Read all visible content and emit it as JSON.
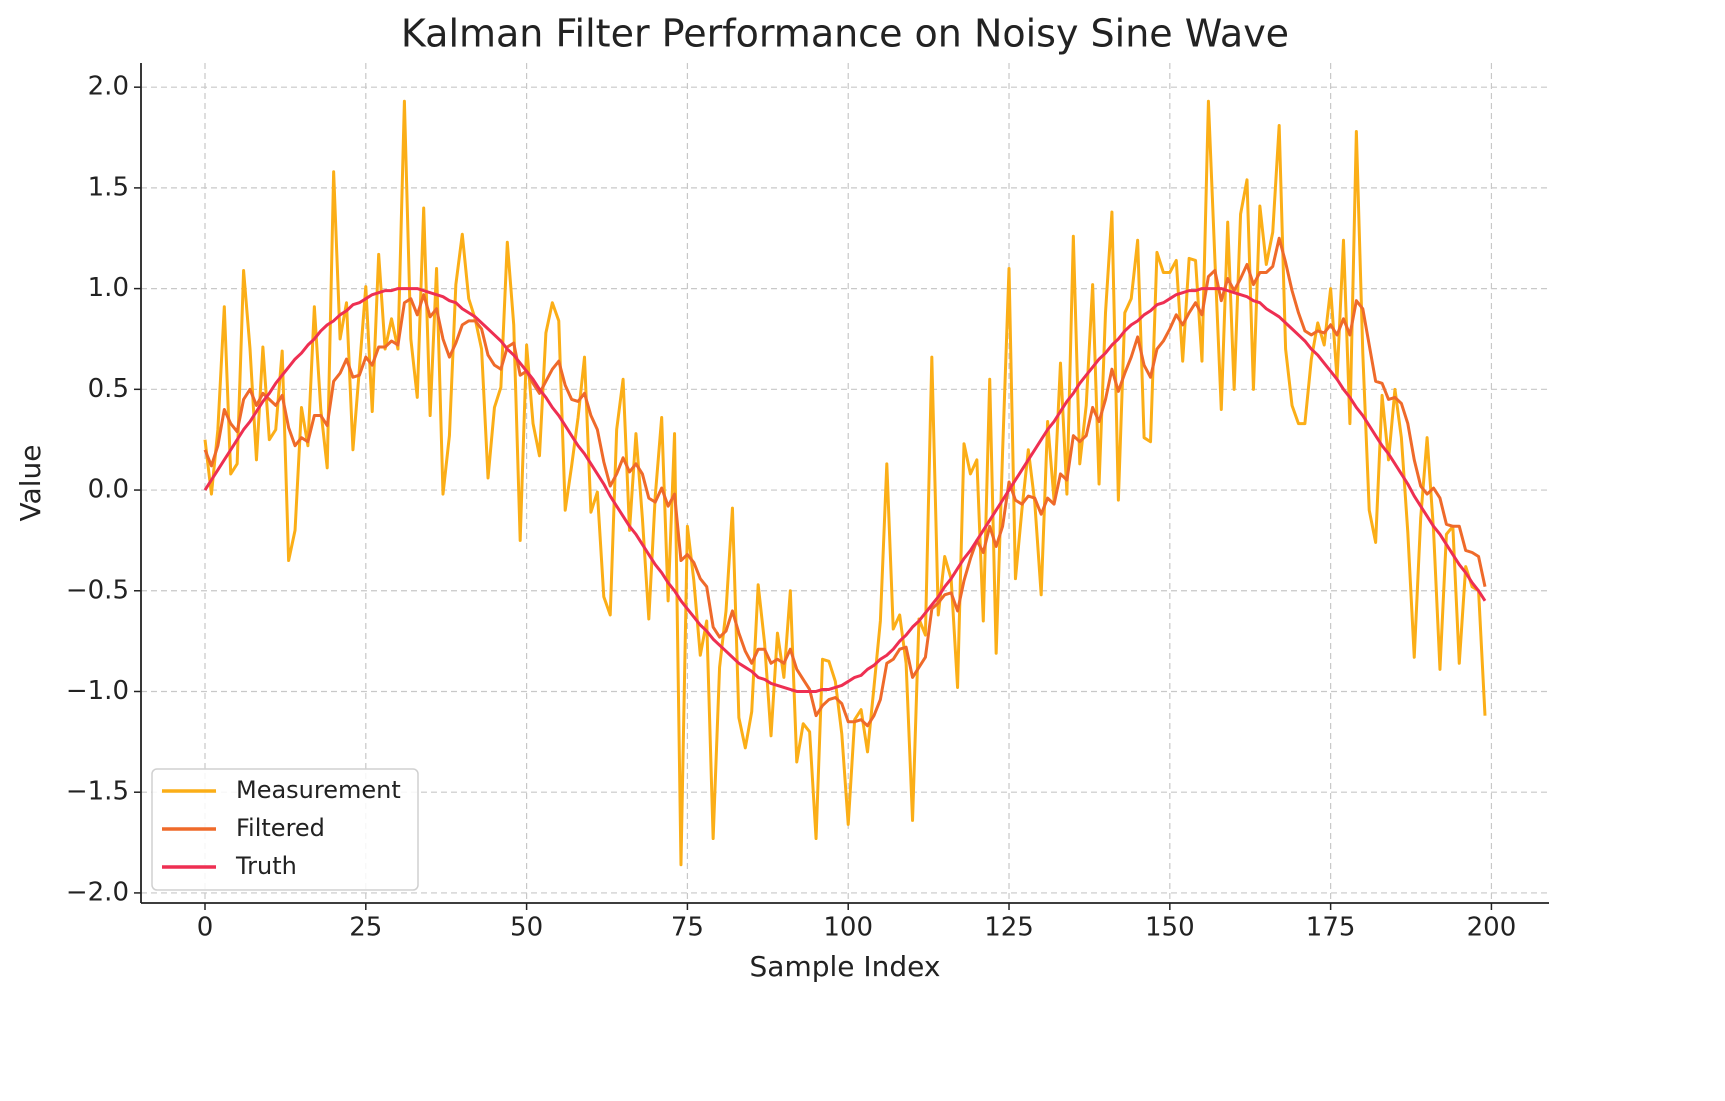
{
  "chart_data": {
    "type": "line",
    "title": "Kalman Filter Performance on Noisy Sine Wave",
    "xlabel": "Sample Index",
    "ylabel": "Value",
    "x": [
      0,
      1,
      2,
      3,
      4,
      5,
      6,
      7,
      8,
      9,
      10,
      11,
      12,
      13,
      14,
      15,
      16,
      17,
      18,
      19,
      20,
      21,
      22,
      23,
      24,
      25,
      26,
      27,
      28,
      29,
      30,
      31,
      32,
      33,
      34,
      35,
      36,
      37,
      38,
      39,
      40,
      41,
      42,
      43,
      44,
      45,
      46,
      47,
      48,
      49,
      50,
      51,
      52,
      53,
      54,
      55,
      56,
      57,
      58,
      59,
      60,
      61,
      62,
      63,
      64,
      65,
      66,
      67,
      68,
      69,
      70,
      71,
      72,
      73,
      74,
      75,
      76,
      77,
      78,
      79,
      80,
      81,
      82,
      83,
      84,
      85,
      86,
      87,
      88,
      89,
      90,
      91,
      92,
      93,
      94,
      95,
      96,
      97,
      98,
      99,
      100,
      101,
      102,
      103,
      104,
      105,
      106,
      107,
      108,
      109,
      110,
      111,
      112,
      113,
      114,
      115,
      116,
      117,
      118,
      119,
      120,
      121,
      122,
      123,
      124,
      125,
      126,
      127,
      128,
      129,
      130,
      131,
      132,
      133,
      134,
      135,
      136,
      137,
      138,
      139,
      140,
      141,
      142,
      143,
      144,
      145,
      146,
      147,
      148,
      149,
      150,
      151,
      152,
      153,
      154,
      155,
      156,
      157,
      158,
      159,
      160,
      161,
      162,
      163,
      164,
      165,
      166,
      167,
      168,
      169,
      170,
      171,
      172,
      173,
      174,
      175,
      176,
      177,
      178,
      179,
      180,
      181,
      182,
      183,
      184,
      185,
      186,
      187,
      188,
      189,
      190,
      191,
      192,
      193,
      194,
      195,
      196,
      197,
      198,
      199
    ],
    "series": [
      {
        "name": "Measurement",
        "color": "#fbae17",
        "values": [
          0.25,
          -0.02,
          0.3,
          0.91,
          0.08,
          0.13,
          1.09,
          0.7,
          0.15,
          0.71,
          0.25,
          0.3,
          0.69,
          -0.35,
          -0.2,
          0.41,
          0.22,
          0.91,
          0.4,
          0.11,
          1.58,
          0.75,
          0.93,
          0.2,
          0.6,
          1.01,
          0.39,
          1.17,
          0.7,
          0.85,
          0.7,
          1.93,
          0.75,
          0.46,
          1.4,
          0.37,
          1.1,
          -0.02,
          0.27,
          1.02,
          1.27,
          0.95,
          0.85,
          0.7,
          0.06,
          0.41,
          0.51,
          1.23,
          0.82,
          -0.25,
          0.72,
          0.33,
          0.17,
          0.78,
          0.93,
          0.84,
          -0.1,
          0.12,
          0.36,
          0.66,
          -0.11,
          -0.01,
          -0.53,
          -0.62,
          0.3,
          0.55,
          -0.2,
          0.28,
          -0.14,
          -0.64,
          -0.03,
          0.36,
          -0.55,
          0.28,
          -1.86,
          -0.18,
          -0.45,
          -0.82,
          -0.65,
          -1.73,
          -0.88,
          -0.6,
          -0.09,
          -1.13,
          -1.28,
          -1.1,
          -0.47,
          -0.76,
          -1.22,
          -0.71,
          -0.93,
          -0.5,
          -1.35,
          -1.16,
          -1.2,
          -1.73,
          -0.84,
          -0.85,
          -0.95,
          -1.21,
          -1.66,
          -1.14,
          -1.09,
          -1.3,
          -0.98,
          -0.65,
          0.13,
          -0.69,
          -0.62,
          -0.86,
          -1.64,
          -0.64,
          -0.72,
          0.66,
          -0.62,
          -0.33,
          -0.44,
          -0.98,
          0.23,
          0.08,
          0.15,
          -0.65,
          0.55,
          -0.81,
          0.19,
          1.1,
          -0.44,
          -0.1,
          0.2,
          -0.06,
          -0.52,
          0.34,
          -0.05,
          0.63,
          -0.02,
          1.26,
          0.13,
          0.42,
          1.02,
          0.03,
          0.88,
          1.38,
          -0.05,
          0.88,
          0.95,
          1.24,
          0.26,
          0.24,
          1.18,
          1.08,
          1.08,
          1.14,
          0.64,
          1.15,
          1.14,
          0.64,
          1.93,
          1.15,
          0.4,
          1.33,
          0.5,
          1.37,
          1.54,
          0.5,
          1.41,
          1.12,
          1.28,
          1.81,
          0.7,
          0.42,
          0.33,
          0.33,
          0.65,
          0.83,
          0.72,
          1.0,
          0.55,
          1.24,
          0.33,
          1.78,
          0.68,
          -0.1,
          -0.26,
          0.47,
          0.15,
          0.5,
          0.26,
          -0.21,
          -0.83,
          -0.14,
          0.26,
          -0.2,
          -0.89,
          -0.22,
          -0.18,
          -0.86,
          -0.38,
          -0.48,
          -0.5,
          -1.12
        ]
      },
      {
        "name": "Filtered",
        "color": "#ef6a2a",
        "values": [
          0.2,
          0.12,
          0.22,
          0.4,
          0.33,
          0.29,
          0.45,
          0.5,
          0.42,
          0.48,
          0.45,
          0.42,
          0.47,
          0.31,
          0.22,
          0.26,
          0.24,
          0.37,
          0.37,
          0.32,
          0.54,
          0.58,
          0.65,
          0.56,
          0.57,
          0.66,
          0.62,
          0.71,
          0.71,
          0.74,
          0.72,
          0.93,
          0.95,
          0.87,
          0.97,
          0.86,
          0.9,
          0.75,
          0.66,
          0.73,
          0.82,
          0.84,
          0.84,
          0.8,
          0.67,
          0.62,
          0.6,
          0.71,
          0.73,
          0.57,
          0.59,
          0.53,
          0.48,
          0.54,
          0.6,
          0.64,
          0.52,
          0.45,
          0.44,
          0.48,
          0.37,
          0.3,
          0.14,
          0.02,
          0.08,
          0.16,
          0.09,
          0.13,
          0.08,
          -0.04,
          -0.06,
          0.01,
          -0.08,
          -0.02,
          -0.35,
          -0.32,
          -0.36,
          -0.44,
          -0.48,
          -0.68,
          -0.73,
          -0.7,
          -0.6,
          -0.71,
          -0.8,
          -0.86,
          -0.79,
          -0.79,
          -0.86,
          -0.84,
          -0.86,
          -0.79,
          -0.89,
          -0.94,
          -0.99,
          -1.12,
          -1.07,
          -1.04,
          -1.03,
          -1.06,
          -1.15,
          -1.15,
          -1.14,
          -1.17,
          -1.12,
          -1.04,
          -0.86,
          -0.84,
          -0.79,
          -0.78,
          -0.93,
          -0.88,
          -0.83,
          -0.59,
          -0.56,
          -0.52,
          -0.51,
          -0.6,
          -0.45,
          -0.34,
          -0.25,
          -0.31,
          -0.18,
          -0.28,
          -0.18,
          0.04,
          -0.05,
          -0.07,
          -0.03,
          -0.04,
          -0.12,
          -0.04,
          -0.07,
          0.08,
          0.05,
          0.27,
          0.24,
          0.27,
          0.41,
          0.34,
          0.45,
          0.6,
          0.49,
          0.58,
          0.66,
          0.76,
          0.62,
          0.56,
          0.7,
          0.74,
          0.8,
          0.87,
          0.82,
          0.88,
          0.93,
          0.87,
          1.06,
          1.09,
          0.94,
          1.05,
          0.99,
          1.05,
          1.12,
          1.02,
          1.08,
          1.08,
          1.11,
          1.25,
          1.13,
          0.99,
          0.88,
          0.79,
          0.77,
          0.79,
          0.78,
          0.82,
          0.77,
          0.85,
          0.77,
          0.94,
          0.9,
          0.72,
          0.54,
          0.53,
          0.45,
          0.46,
          0.43,
          0.33,
          0.15,
          0.02,
          -0.02,
          0.01,
          -0.04,
          -0.17,
          -0.18,
          -0.18,
          -0.3,
          -0.31,
          -0.33,
          -0.48
        ]
      },
      {
        "name": "Truth",
        "color": "#ee2f52",
        "values": [
          0,
          0.05,
          0.1,
          0.15,
          0.2,
          0.25,
          0.3,
          0.34,
          0.39,
          0.44,
          0.48,
          0.53,
          0.57,
          0.61,
          0.65,
          0.68,
          0.72,
          0.75,
          0.79,
          0.82,
          0.84,
          0.87,
          0.89,
          0.92,
          0.93,
          0.95,
          0.97,
          0.98,
          0.99,
          0.99,
          1.0,
          1.0,
          1.0,
          1.0,
          0.99,
          0.98,
          0.97,
          0.96,
          0.94,
          0.93,
          0.9,
          0.88,
          0.86,
          0.83,
          0.8,
          0.77,
          0.74,
          0.7,
          0.67,
          0.63,
          0.59,
          0.55,
          0.5,
          0.46,
          0.41,
          0.37,
          0.32,
          0.27,
          0.22,
          0.18,
          0.13,
          0.08,
          0.03,
          -0.03,
          -0.08,
          -0.13,
          -0.18,
          -0.22,
          -0.27,
          -0.32,
          -0.37,
          -0.41,
          -0.46,
          -0.5,
          -0.55,
          -0.59,
          -0.63,
          -0.67,
          -0.7,
          -0.74,
          -0.77,
          -0.8,
          -0.83,
          -0.86,
          -0.88,
          -0.9,
          -0.93,
          -0.94,
          -0.96,
          -0.97,
          -0.98,
          -0.99,
          -1.0,
          -1.0,
          -1.0,
          -1.0,
          -0.99,
          -0.99,
          -0.98,
          -0.97,
          -0.95,
          -0.93,
          -0.92,
          -0.89,
          -0.87,
          -0.84,
          -0.82,
          -0.79,
          -0.75,
          -0.72,
          -0.68,
          -0.65,
          -0.61,
          -0.57,
          -0.53,
          -0.48,
          -0.44,
          -0.39,
          -0.34,
          -0.3,
          -0.25,
          -0.2,
          -0.15,
          -0.1,
          -0.05,
          0,
          0.05,
          0.1,
          0.15,
          0.2,
          0.25,
          0.3,
          0.34,
          0.39,
          0.44,
          0.48,
          0.53,
          0.57,
          0.61,
          0.65,
          0.68,
          0.72,
          0.75,
          0.79,
          0.82,
          0.84,
          0.87,
          0.89,
          0.92,
          0.93,
          0.95,
          0.97,
          0.98,
          0.99,
          0.99,
          1.0,
          1.0,
          1.0,
          1.0,
          0.99,
          0.98,
          0.97,
          0.96,
          0.94,
          0.93,
          0.9,
          0.88,
          0.86,
          0.83,
          0.8,
          0.77,
          0.74,
          0.7,
          0.67,
          0.63,
          0.59,
          0.55,
          0.5,
          0.46,
          0.41,
          0.37,
          0.32,
          0.27,
          0.22,
          0.18,
          0.13,
          0.08,
          0.03,
          -0.03,
          -0.08,
          -0.13,
          -0.18,
          -0.22,
          -0.27,
          -0.32,
          -0.37,
          -0.41,
          -0.46,
          -0.5,
          -0.55
        ]
      }
    ],
    "xlim": [
      -9.95,
      208.95
    ],
    "ylim": [
      -2.05,
      2.12
    ],
    "xticks": [
      0,
      25,
      50,
      75,
      100,
      125,
      150,
      175,
      200
    ],
    "yticks": [
      {
        "value": -2.0,
        "label": "−2.0"
      },
      {
        "value": -1.5,
        "label": "−1.5"
      },
      {
        "value": -1.0,
        "label": "−1.0"
      },
      {
        "value": -0.5,
        "label": "−0.5"
      },
      {
        "value": 0.0,
        "label": "0.0"
      },
      {
        "value": 0.5,
        "label": "0.5"
      },
      {
        "value": 1.0,
        "label": "1.0"
      },
      {
        "value": 1.5,
        "label": "1.5"
      },
      {
        "value": 2.0,
        "label": "2.0"
      }
    ],
    "grid": true,
    "legend": "lower left"
  }
}
